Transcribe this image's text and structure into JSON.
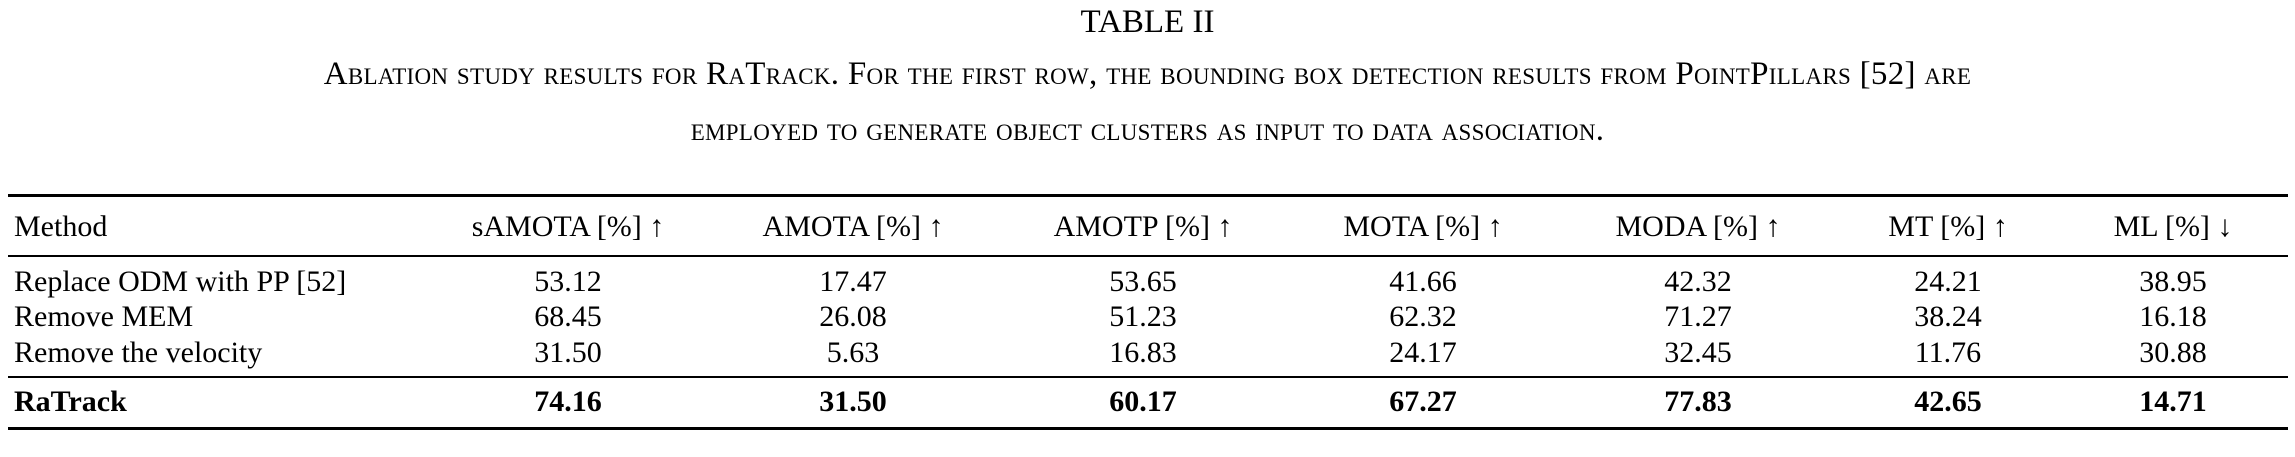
{
  "table_label": "TABLE II",
  "caption": {
    "line1": "Ablation study results for RaTrack. For the first row, the bounding box detection results from PointPillars [52] are",
    "line2": "employed to generate object clusters as input to data association."
  },
  "columns": [
    "Method",
    "sAMOTA [%] ↑",
    "AMOTA [%] ↑",
    "AMOTP [%] ↑",
    "MOTA [%] ↑",
    "MODA [%] ↑",
    "MT [%] ↑",
    "ML [%] ↓"
  ],
  "rows": [
    [
      "Replace ODM with PP [52]",
      "53.12",
      "17.47",
      "53.65",
      "41.66",
      "42.32",
      "24.21",
      "38.95"
    ],
    [
      "Remove MEM",
      "68.45",
      "26.08",
      "51.23",
      "62.32",
      "71.27",
      "38.24",
      "16.18"
    ],
    [
      "Remove the velocity",
      "31.50",
      "5.63",
      "16.83",
      "24.17",
      "32.45",
      "11.76",
      "30.88"
    ]
  ],
  "final_row": [
    "RaTrack",
    "74.16",
    "31.50",
    "60.17",
    "67.27",
    "77.83",
    "42.65",
    "14.71"
  ]
}
